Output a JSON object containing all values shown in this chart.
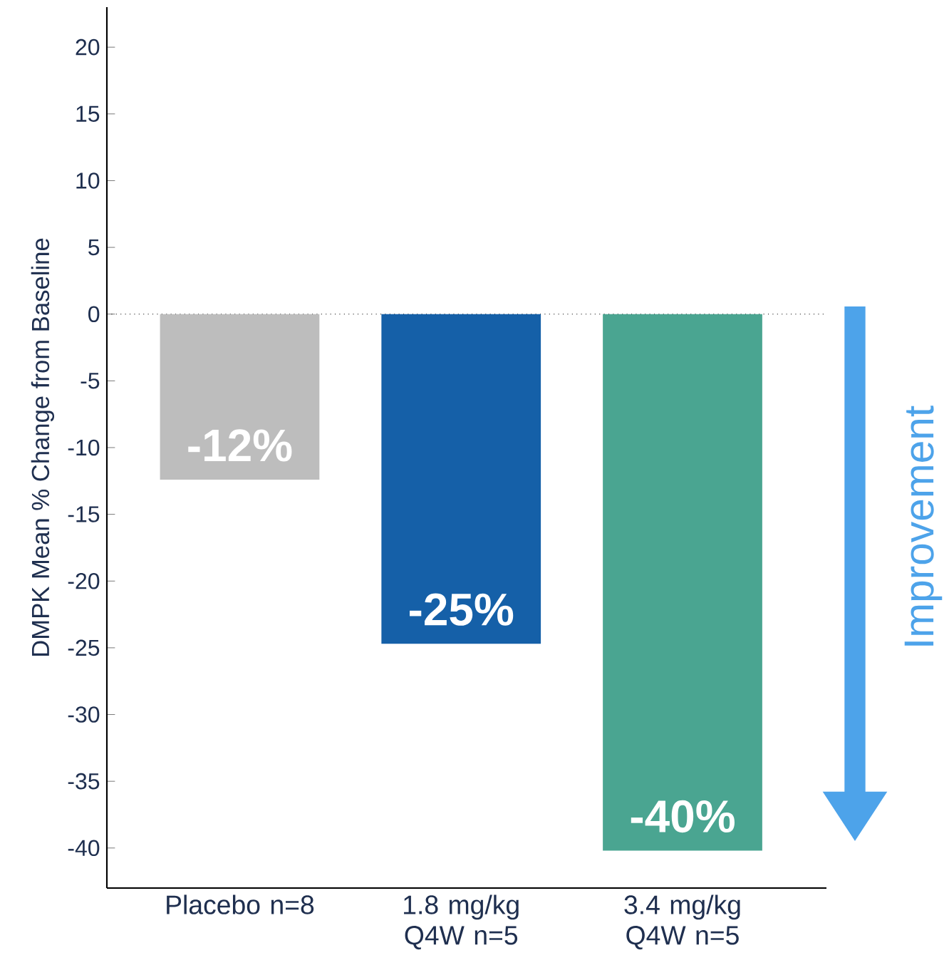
{
  "chart_data": {
    "type": "bar",
    "ylabel": "DMPK Mean % Change from Baseline",
    "categories": [
      "Placebo n=8",
      "1.8 mg/kg Q4W n=5",
      "3.4 mg/kg Q4W n=5"
    ],
    "values": [
      -12.4,
      -24.7,
      -40.2
    ],
    "colors": [
      "#bdbdbd",
      "#1560a8",
      "#4aa591"
    ],
    "value_labels": [
      "-12%",
      "-25%",
      "-40%"
    ],
    "ylim": [
      -43,
      23
    ],
    "yticks": [
      -40,
      -35,
      -30,
      -25,
      -20,
      -15,
      -10,
      -5,
      0,
      5,
      10,
      15,
      20
    ],
    "ref_lines": [
      {
        "axis": "y",
        "value": 0,
        "line_style": "dotted",
        "color": "#000000"
      }
    ],
    "annotations": [
      "Improvement"
    ],
    "grid": false
  }
}
